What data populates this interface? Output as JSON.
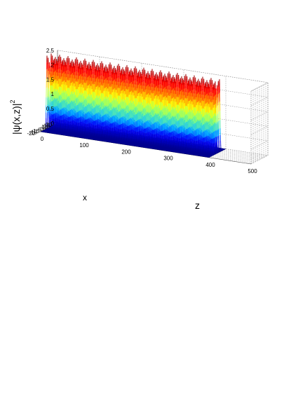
{
  "chart_data": {
    "type": "surface",
    "title": "",
    "zlabel_base": "|ψ(x,z)|",
    "zlabel_exp": "2",
    "xlabel": "x",
    "ylabel": "z",
    "x_range": [
      -20,
      20
    ],
    "z_range": [
      0,
      500
    ],
    "intensity_range": [
      0,
      2.5
    ],
    "x_ticks": [
      "20",
      "15",
      "10",
      "5",
      "0",
      "-5",
      "-10",
      "-15",
      "-20"
    ],
    "z_ticks": [
      "0",
      "100",
      "200",
      "300",
      "400",
      "500"
    ],
    "intensity_ticks": [
      "0",
      "0.5",
      "1",
      "1.5",
      "2",
      "2.5"
    ],
    "grid": true,
    "colormap": [
      "#00008f",
      "#0000ff",
      "#00bfff",
      "#7fff7f",
      "#ffff00",
      "#ff7f00",
      "#ff0000",
      "#8f0000"
    ],
    "beams": [
      {
        "x_center": 5,
        "width": 2.5,
        "peak": 2.5,
        "oscillation_period": 20
      },
      {
        "x_center": -5,
        "width": 2.5,
        "peak": 2.5,
        "oscillation_period": 20
      }
    ],
    "z_extent": 400
  }
}
